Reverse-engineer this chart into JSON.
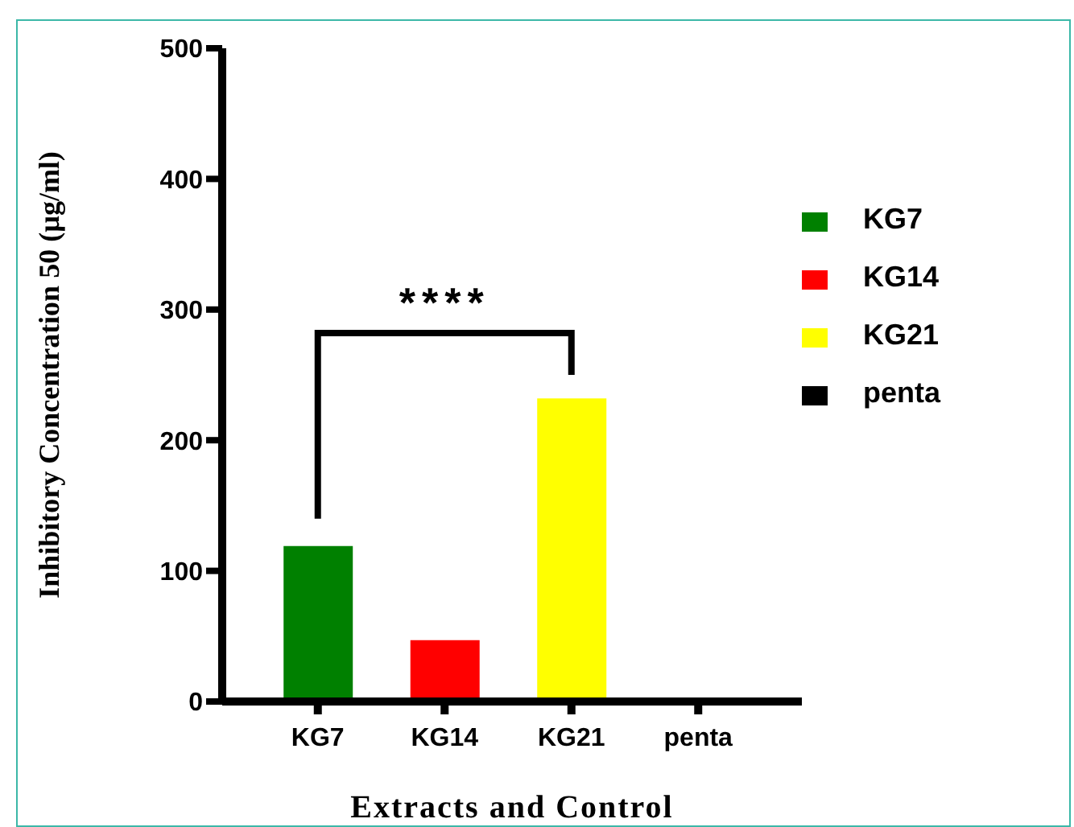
{
  "chart_data": {
    "type": "bar",
    "xlabel": "Extracts and Control",
    "ylabel": "Inhibitory Concentration 50 (µg/ml)",
    "categories": [
      "KG7",
      "KG14",
      "KG21",
      "penta"
    ],
    "series": [
      {
        "name": "KG7",
        "color": "#008000",
        "values": [
          119,
          null,
          null,
          null
        ]
      },
      {
        "name": "KG14",
        "color": "#ff0000",
        "values": [
          null,
          47,
          null,
          null
        ]
      },
      {
        "name": "KG21",
        "color": "#ffff00",
        "values": [
          null,
          null,
          232,
          null
        ]
      },
      {
        "name": "penta",
        "color": "#000000",
        "values": [
          null,
          null,
          null,
          0
        ]
      }
    ],
    "ylim": [
      0,
      500
    ],
    "yticks": [
      0,
      100,
      200,
      300,
      400,
      500
    ],
    "grid": false,
    "legend": "right",
    "annotations": [
      "****"
    ]
  }
}
